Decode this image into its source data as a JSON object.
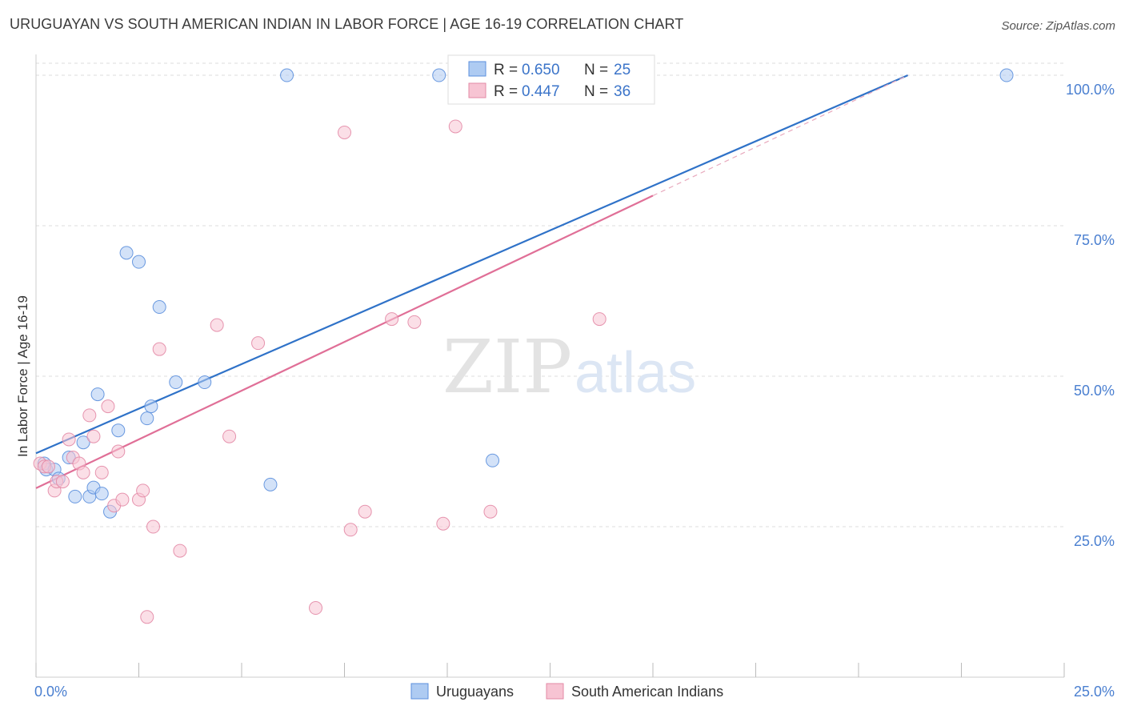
{
  "header": {
    "title": "URUGUAYAN VS SOUTH AMERICAN INDIAN IN LABOR FORCE | AGE 16-19 CORRELATION CHART",
    "source": "Source: ZipAtlas.com"
  },
  "watermark": {
    "zip": "ZIP",
    "atlas": "atlas"
  },
  "legend": {
    "rows": [
      {
        "r_label": "R = ",
        "r_value": "0.650",
        "n_label": "N = ",
        "n_value": "25"
      },
      {
        "r_label": "R = ",
        "r_value": "0.447",
        "n_label": "N = ",
        "n_value": "36"
      }
    ]
  },
  "bottom_legend": {
    "series_a": "Uruguayans",
    "series_b": "South American Indians"
  },
  "colors": {
    "blue_fill": "#aecbf2",
    "blue_stroke": "#5b8fdd",
    "blue_line": "#2f72c8",
    "pink_fill": "#f7c4d3",
    "pink_stroke": "#e38aa6",
    "pink_line": "#e06f97",
    "grid": "#dddddd",
    "tick_text": "#4a7fd0"
  },
  "chart_data": {
    "type": "scatter",
    "title": "URUGUAYAN VS SOUTH AMERICAN INDIAN IN LABOR FORCE | AGE 16-19 CORRELATION CHART",
    "xlabel": "",
    "ylabel": "In Labor Force | Age 16-19",
    "xlim": [
      0,
      25
    ],
    "ylim": [
      0,
      102
    ],
    "x_tick_labels": [
      "0.0%",
      "25.0%"
    ],
    "y_ticks": [
      25,
      50,
      75,
      100
    ],
    "y_tick_labels": [
      "25.0%",
      "50.0%",
      "75.0%",
      "100.0%"
    ],
    "grid": true,
    "legend_position": "top-center",
    "series": [
      {
        "name": "Uruguayans",
        "r": 0.65,
        "n": 25,
        "x": [
          0.2,
          0.25,
          0.45,
          0.55,
          0.8,
          0.95,
          1.15,
          1.3,
          1.4,
          1.5,
          1.6,
          1.8,
          2.0,
          2.2,
          2.5,
          2.7,
          2.8,
          3.0,
          3.4,
          4.1,
          5.7,
          6.1,
          9.8,
          11.1,
          23.6
        ],
        "y": [
          35.5,
          34.5,
          34.5,
          33.0,
          36.5,
          30.0,
          39.0,
          30.0,
          31.5,
          47.0,
          30.5,
          27.5,
          41.0,
          70.5,
          69.0,
          43.0,
          45.0,
          61.5,
          49.0,
          49.0,
          32.0,
          100.0,
          100.0,
          36.0,
          100.0
        ]
      },
      {
        "name": "South American Indians",
        "r": 0.447,
        "n": 36,
        "x": [
          0.1,
          0.2,
          0.3,
          0.45,
          0.5,
          0.65,
          0.8,
          0.9,
          1.05,
          1.15,
          1.3,
          1.4,
          1.6,
          1.75,
          1.9,
          2.0,
          2.1,
          2.5,
          2.6,
          2.7,
          2.85,
          3.0,
          3.5,
          4.4,
          4.7,
          5.4,
          6.8,
          7.5,
          7.65,
          8.0,
          8.65,
          9.2,
          9.9,
          10.2,
          11.05,
          13.7
        ],
        "y": [
          35.5,
          35.0,
          35.0,
          31.0,
          32.5,
          32.5,
          39.5,
          36.5,
          35.5,
          34.0,
          43.5,
          40.0,
          34.0,
          45.0,
          28.5,
          37.5,
          29.5,
          29.5,
          31.0,
          10.0,
          25.0,
          54.5,
          21.0,
          58.5,
          40.0,
          55.5,
          11.5,
          90.5,
          24.5,
          27.5,
          59.5,
          59.0,
          25.5,
          91.5,
          27.5,
          59.5
        ]
      }
    ],
    "trend_lines": [
      {
        "series": "Uruguayans",
        "x": [
          0,
          21.2
        ],
        "y": [
          37.2,
          100.0
        ]
      },
      {
        "series": "South American Indians",
        "x": [
          0,
          15
        ],
        "y": [
          31.4,
          80.0
        ],
        "dashed_extension_x": [
          15,
          21.2
        ],
        "dashed_extension_y": [
          80.0,
          100.0
        ]
      }
    ]
  }
}
